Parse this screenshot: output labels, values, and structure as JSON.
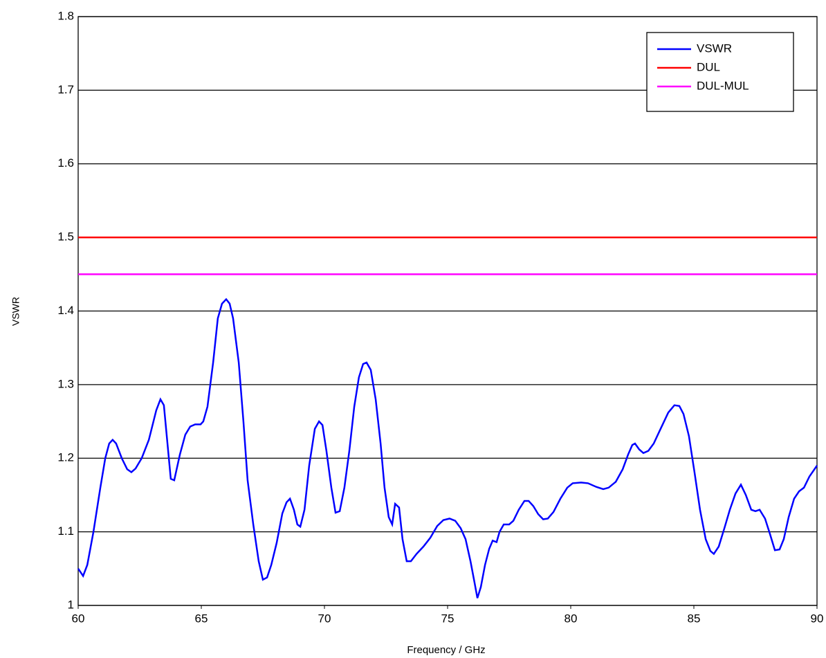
{
  "chart_data": {
    "type": "line",
    "xlabel": "Frequency / GHz",
    "ylabel": "VSWR",
    "xlim": [
      60,
      90
    ],
    "xticks": [
      60,
      65,
      70,
      75,
      80,
      85,
      90
    ],
    "ylim": [
      1,
      1.8
    ],
    "yticks": [
      1,
      1.1,
      1.2,
      1.3,
      1.4,
      1.5,
      1.6,
      1.7,
      1.8
    ],
    "grid": true,
    "legend": "upper right",
    "series": [
      {
        "name": "VSWR",
        "color": "#0000ff",
        "x": [
          60.0,
          60.2,
          60.37,
          60.62,
          60.9,
          61.1,
          61.26,
          61.4,
          61.54,
          61.77,
          61.99,
          62.16,
          62.33,
          62.58,
          62.87,
          63.17,
          63.34,
          63.48,
          63.76,
          63.9,
          64.13,
          64.35,
          64.55,
          64.75,
          64.97,
          65.08,
          65.25,
          65.48,
          65.67,
          65.84,
          66.01,
          66.15,
          66.29,
          66.52,
          66.71,
          66.88,
          67.11,
          67.33,
          67.5,
          67.67,
          67.84,
          68.06,
          68.29,
          68.46,
          68.6,
          68.76,
          68.9,
          69.02,
          69.19,
          69.38,
          69.61,
          69.78,
          69.92,
          70.08,
          70.28,
          70.45,
          70.62,
          70.81,
          71.01,
          71.21,
          71.4,
          71.57,
          71.71,
          71.88,
          72.08,
          72.28,
          72.44,
          72.61,
          72.75,
          72.87,
          73.03,
          73.17,
          73.34,
          73.51,
          73.74,
          74.02,
          74.3,
          74.58,
          74.83,
          75.08,
          75.31,
          75.53,
          75.73,
          75.93,
          76.1,
          76.21,
          76.35,
          76.52,
          76.69,
          76.83,
          76.99,
          77.11,
          77.28,
          77.5,
          77.67,
          77.89,
          78.12,
          78.29,
          78.48,
          78.68,
          78.88,
          79.07,
          79.3,
          79.58,
          79.86,
          80.08,
          80.42,
          80.7,
          81.04,
          81.32,
          81.54,
          81.83,
          82.11,
          82.33,
          82.5,
          82.61,
          82.78,
          82.95,
          83.15,
          83.37,
          83.65,
          83.96,
          84.21,
          84.41,
          84.58,
          84.8,
          85.03,
          85.25,
          85.48,
          85.67,
          85.81,
          86.01,
          86.24,
          86.46,
          86.69,
          86.91,
          87.11,
          87.33,
          87.5,
          87.67,
          87.89,
          88.09,
          88.29,
          88.48,
          88.65,
          88.85,
          89.07,
          89.27,
          89.47,
          89.69,
          90.0
        ],
        "values": [
          1.05,
          1.04,
          1.055,
          1.1,
          1.16,
          1.2,
          1.22,
          1.225,
          1.22,
          1.2,
          1.185,
          1.181,
          1.186,
          1.2,
          1.225,
          1.265,
          1.28,
          1.272,
          1.172,
          1.17,
          1.205,
          1.232,
          1.243,
          1.246,
          1.246,
          1.25,
          1.27,
          1.33,
          1.39,
          1.41,
          1.416,
          1.41,
          1.39,
          1.33,
          1.25,
          1.17,
          1.11,
          1.06,
          1.035,
          1.038,
          1.055,
          1.085,
          1.125,
          1.14,
          1.145,
          1.13,
          1.11,
          1.107,
          1.13,
          1.19,
          1.24,
          1.25,
          1.245,
          1.21,
          1.16,
          1.126,
          1.128,
          1.16,
          1.21,
          1.27,
          1.31,
          1.328,
          1.33,
          1.32,
          1.28,
          1.22,
          1.16,
          1.12,
          1.11,
          1.138,
          1.133,
          1.09,
          1.06,
          1.06,
          1.07,
          1.08,
          1.092,
          1.108,
          1.116,
          1.118,
          1.115,
          1.105,
          1.09,
          1.06,
          1.03,
          1.01,
          1.025,
          1.055,
          1.077,
          1.088,
          1.086,
          1.1,
          1.11,
          1.11,
          1.115,
          1.13,
          1.142,
          1.142,
          1.135,
          1.124,
          1.117,
          1.118,
          1.127,
          1.145,
          1.16,
          1.166,
          1.167,
          1.166,
          1.161,
          1.158,
          1.16,
          1.168,
          1.185,
          1.205,
          1.218,
          1.22,
          1.212,
          1.207,
          1.21,
          1.22,
          1.24,
          1.262,
          1.272,
          1.271,
          1.26,
          1.23,
          1.18,
          1.13,
          1.09,
          1.074,
          1.07,
          1.08,
          1.105,
          1.13,
          1.152,
          1.164,
          1.15,
          1.13,
          1.128,
          1.13,
          1.118,
          1.097,
          1.075,
          1.076,
          1.09,
          1.12,
          1.145,
          1.155,
          1.16,
          1.175,
          1.19
        ]
      },
      {
        "name": "DUL",
        "color": "#ff0000",
        "x": [
          60,
          90
        ],
        "values": [
          1.5,
          1.5
        ]
      },
      {
        "name": "DUL-MUL",
        "color": "#ff00ff",
        "x": [
          60,
          90
        ],
        "values": [
          1.45,
          1.45
        ]
      }
    ]
  }
}
